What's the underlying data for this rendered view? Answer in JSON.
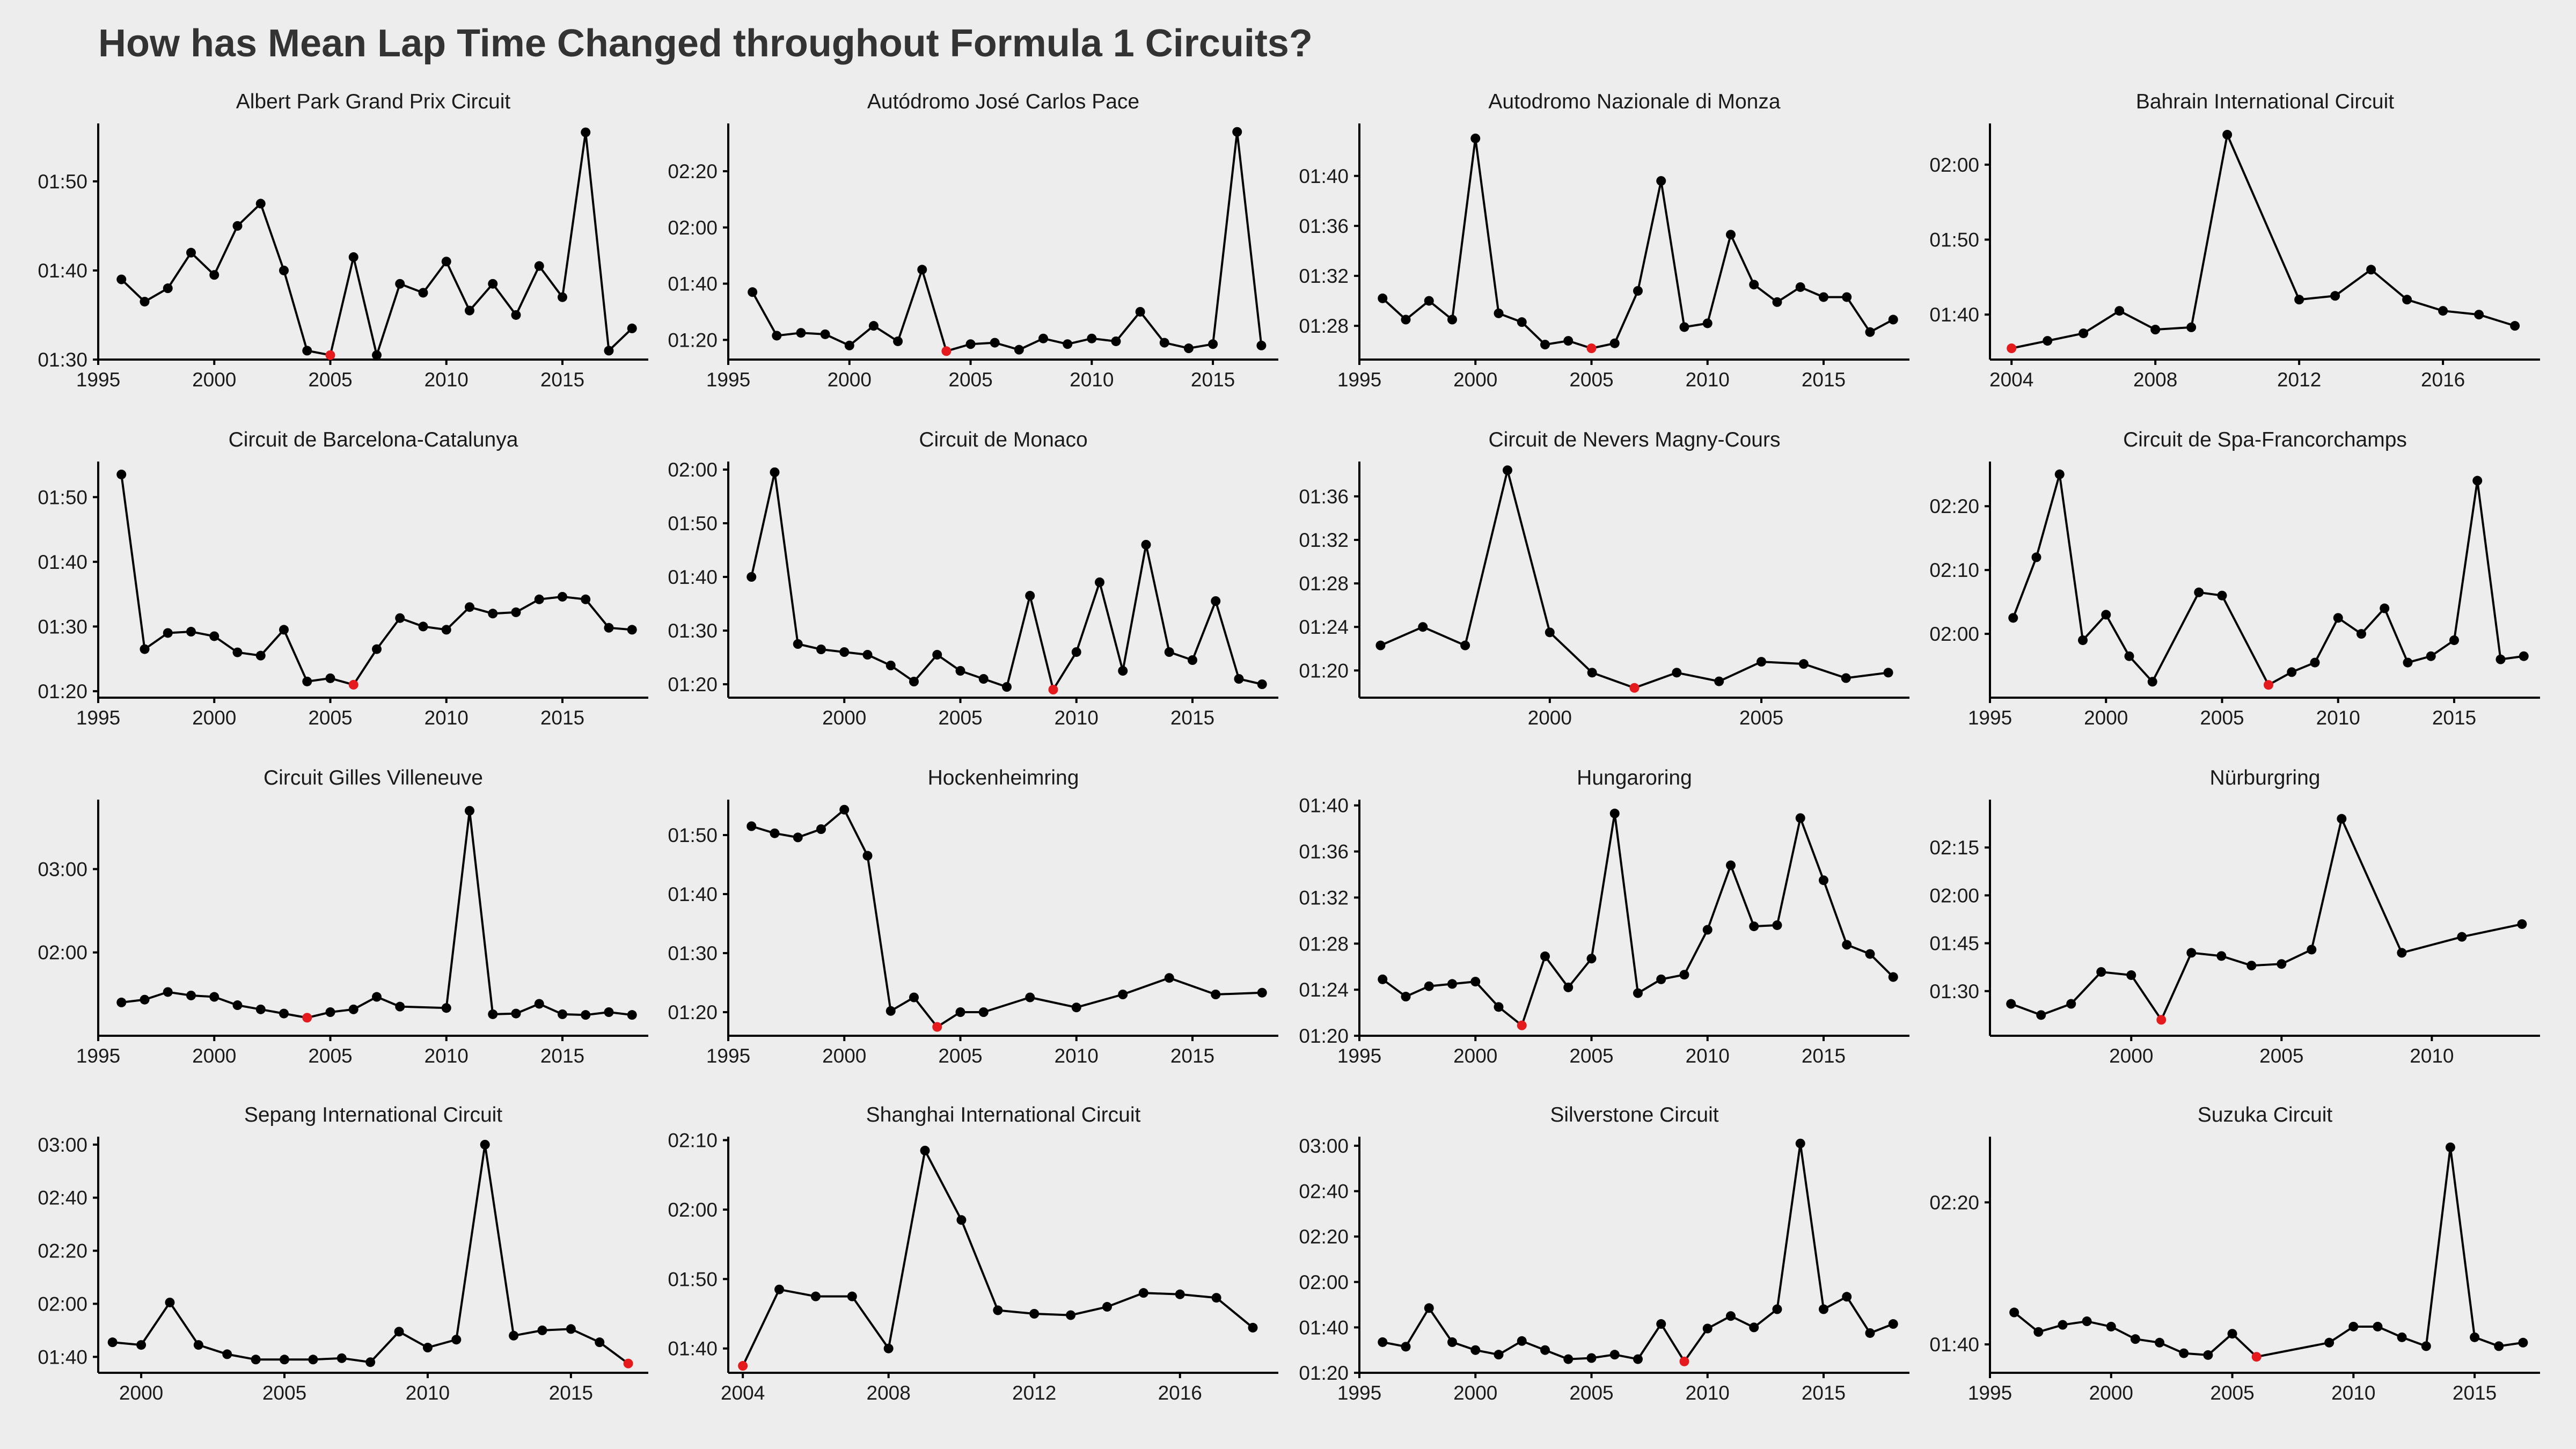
{
  "title": "How has Mean Lap Time Changed throughout Formula 1 Circuits?",
  "colors": {
    "background": "#ededed",
    "line": "#000000",
    "point": "#000000",
    "min_point": "#e41a1c"
  },
  "chart_data": [
    {
      "type": "line",
      "title": "Albert Park Grand Prix Circuit",
      "x": [
        1996,
        1997,
        1998,
        1999,
        2000,
        2001,
        2002,
        2003,
        2004,
        2005,
        2006,
        2007,
        2008,
        2009,
        2010,
        2011,
        2012,
        2013,
        2014,
        2015,
        2016,
        2017,
        2018
      ],
      "y": [
        99,
        96.5,
        98,
        102,
        99.5,
        105,
        107.5,
        100,
        91,
        90.5,
        101.5,
        90.5,
        98.5,
        97.5,
        101,
        95.5,
        98.5,
        95,
        100.5,
        97,
        115.5,
        91,
        93.5
      ],
      "highlight_x": 2005,
      "xlim": [
        1995,
        2018.7
      ],
      "ylim": [
        90,
        116.5
      ],
      "xticks": [
        1995,
        2000,
        2005,
        2010,
        2015
      ],
      "xtick_labels": [
        "1995",
        "2000",
        "2005",
        "2010",
        "2015"
      ],
      "yticks": [
        90,
        100,
        110
      ],
      "ytick_labels": [
        "01:30",
        "01:40",
        "01:50"
      ]
    },
    {
      "type": "line",
      "title": "Autódromo José Carlos Pace",
      "x": [
        1996,
        1997,
        1998,
        1999,
        2000,
        2001,
        2002,
        2003,
        2004,
        2005,
        2006,
        2007,
        2008,
        2009,
        2010,
        2011,
        2012,
        2013,
        2014,
        2015,
        2016,
        2017
      ],
      "y": [
        97,
        81.5,
        82.5,
        82,
        78,
        85,
        79.5,
        105,
        76,
        78.5,
        79,
        76.5,
        80.5,
        78.5,
        80.5,
        79.5,
        90,
        79,
        77,
        78.5,
        154,
        78
      ],
      "highlight_x": 2004,
      "xlim": [
        1995,
        2017.7
      ],
      "ylim": [
        73,
        157
      ],
      "xticks": [
        1995,
        2000,
        2005,
        2010,
        2015
      ],
      "xtick_labels": [
        "1995",
        "2000",
        "2005",
        "2010",
        "2015"
      ],
      "yticks": [
        80,
        100,
        120,
        140
      ],
      "ytick_labels": [
        "01:20",
        "01:40",
        "02:00",
        "02:20"
      ]
    },
    {
      "type": "line",
      "title": "Autodromo Nazionale di Monza",
      "x": [
        1996,
        1997,
        1998,
        1999,
        2000,
        2001,
        2002,
        2003,
        2004,
        2005,
        2006,
        2007,
        2008,
        2009,
        2010,
        2011,
        2012,
        2013,
        2014,
        2015,
        2016,
        2017,
        2018
      ],
      "y": [
        90.2,
        88.5,
        90,
        88.5,
        103,
        89,
        88.3,
        86.5,
        86.8,
        86.2,
        86.6,
        90.8,
        99.6,
        87.9,
        88.2,
        95.3,
        91.3,
        89.9,
        91.1,
        90.3,
        90.3,
        87.5,
        88.5
      ],
      "highlight_x": 2005,
      "xlim": [
        1995,
        2018.7
      ],
      "ylim": [
        85.3,
        104.2
      ],
      "xticks": [
        1995,
        2000,
        2005,
        2010,
        2015
      ],
      "xtick_labels": [
        "1995",
        "2000",
        "2005",
        "2010",
        "2015"
      ],
      "yticks": [
        88,
        92,
        96,
        100
      ],
      "ytick_labels": [
        "01:28",
        "01:32",
        "01:36",
        "01:40"
      ]
    },
    {
      "type": "line",
      "title": "Bahrain International Circuit",
      "x": [
        2004,
        2005,
        2006,
        2007,
        2008,
        2009,
        2010,
        2012,
        2013,
        2014,
        2015,
        2016,
        2017,
        2018
      ],
      "y": [
        95.5,
        96.5,
        97.5,
        100.5,
        98,
        98.3,
        124,
        102,
        102.5,
        106,
        102,
        100.5,
        100,
        98.5
      ],
      "highlight_x": 2004,
      "xlim": [
        2003.4,
        2018.7
      ],
      "ylim": [
        94,
        125.5
      ],
      "xticks": [
        2004,
        2008,
        2012,
        2016
      ],
      "xtick_labels": [
        "2004",
        "2008",
        "2012",
        "2016"
      ],
      "yticks": [
        100,
        110,
        120
      ],
      "ytick_labels": [
        "01:40",
        "01:50",
        "02:00"
      ]
    },
    {
      "type": "line",
      "title": "Circuit de Barcelona-Catalunya",
      "x": [
        1996,
        1997,
        1998,
        1999,
        2000,
        2001,
        2002,
        2003,
        2004,
        2005,
        2006,
        2007,
        2008,
        2009,
        2010,
        2011,
        2012,
        2013,
        2014,
        2015,
        2016,
        2017,
        2018
      ],
      "y": [
        113.5,
        86.5,
        89,
        89.2,
        88.5,
        86,
        85.5,
        89.5,
        81.5,
        82,
        81,
        86.5,
        91.3,
        90,
        89.5,
        93,
        92,
        92.2,
        94.2,
        94.6,
        94.2,
        89.8,
        89.5
      ],
      "highlight_x": 2006,
      "xlim": [
        1995,
        2018.7
      ],
      "ylim": [
        79,
        115.5
      ],
      "xticks": [
        1995,
        2000,
        2005,
        2010,
        2015
      ],
      "xtick_labels": [
        "1995",
        "2000",
        "2005",
        "2010",
        "2015"
      ],
      "yticks": [
        80,
        90,
        100,
        110
      ],
      "ytick_labels": [
        "01:20",
        "01:30",
        "01:40",
        "01:50"
      ]
    },
    {
      "type": "line",
      "title": "Circuit de Monaco",
      "x": [
        1996,
        1997,
        1998,
        1999,
        2000,
        2001,
        2002,
        2003,
        2004,
        2005,
        2006,
        2007,
        2008,
        2009,
        2010,
        2011,
        2012,
        2013,
        2014,
        2015,
        2016,
        2017,
        2018
      ],
      "y": [
        100,
        119.5,
        87.5,
        86.5,
        86,
        85.5,
        83.5,
        80.5,
        85.5,
        82.5,
        81,
        79.5,
        96.5,
        79,
        86,
        99,
        82.5,
        106,
        86,
        84.5,
        95.5,
        81,
        80
      ],
      "highlight_x": 2009,
      "xlim": [
        1995,
        2018.7
      ],
      "ylim": [
        77.5,
        121.5
      ],
      "xticks": [
        2000,
        2005,
        2010,
        2015
      ],
      "xtick_labels": [
        "2000",
        "2005",
        "2010",
        "2015"
      ],
      "yticks": [
        80,
        90,
        100,
        110,
        120
      ],
      "ytick_labels": [
        "01:20",
        "01:30",
        "01:40",
        "01:50",
        "02:00"
      ]
    },
    {
      "type": "line",
      "title": "Circuit de Nevers Magny-Cours",
      "x": [
        1996,
        1997,
        1998,
        1999,
        2000,
        2001,
        2002,
        2003,
        2004,
        2005,
        2006,
        2007,
        2008
      ],
      "y": [
        82.3,
        84,
        82.3,
        98.4,
        83.5,
        79.8,
        78.4,
        79.8,
        79,
        80.8,
        80.6,
        79.3,
        79.8
      ],
      "highlight_x": 2002,
      "xlim": [
        1995.5,
        2008.5
      ],
      "ylim": [
        77.5,
        99.2
      ],
      "xticks": [
        2000,
        2005
      ],
      "xtick_labels": [
        "2000",
        "2005"
      ],
      "yticks": [
        80,
        84,
        88,
        92,
        96
      ],
      "ytick_labels": [
        "01:20",
        "01:24",
        "01:28",
        "01:32",
        "01:36"
      ]
    },
    {
      "type": "line",
      "title": "Circuit de Spa-Francorchamps",
      "x": [
        1996,
        1997,
        1998,
        1999,
        2000,
        2001,
        2002,
        2004,
        2005,
        2007,
        2008,
        2009,
        2010,
        2011,
        2012,
        2013,
        2014,
        2015,
        2016,
        2017,
        2018
      ],
      "y": [
        122.5,
        132,
        145,
        119,
        123,
        116.5,
        112.5,
        126.5,
        126,
        112,
        114,
        115.5,
        122.5,
        120,
        124,
        115.5,
        116.5,
        119,
        144,
        116,
        116.5
      ],
      "highlight_x": 2007,
      "xlim": [
        1995,
        2018.7
      ],
      "ylim": [
        110,
        147
      ],
      "xticks": [
        1995,
        2000,
        2005,
        2010,
        2015
      ],
      "xtick_labels": [
        "1995",
        "2000",
        "2005",
        "2010",
        "2015"
      ],
      "yticks": [
        120,
        130,
        140
      ],
      "ytick_labels": [
        "02:00",
        "02:10",
        "02:20"
      ]
    },
    {
      "type": "line",
      "title": "Circuit Gilles Villeneuve",
      "x": [
        1996,
        1997,
        1998,
        1999,
        2000,
        2001,
        2002,
        2003,
        2004,
        2005,
        2006,
        2007,
        2008,
        2010,
        2011,
        2012,
        2013,
        2014,
        2015,
        2016,
        2017,
        2018
      ],
      "y": [
        84,
        86,
        91.5,
        89,
        88,
        82,
        79,
        76,
        73,
        77,
        79,
        88,
        81,
        80,
        222,
        75.5,
        76,
        83,
        75.5,
        75,
        77,
        75
      ],
      "highlight_x": 2004,
      "xlim": [
        1995,
        2018.7
      ],
      "ylim": [
        60,
        230
      ],
      "xticks": [
        1995,
        2000,
        2005,
        2010,
        2015
      ],
      "xtick_labels": [
        "1995",
        "2000",
        "2005",
        "2010",
        "2015"
      ],
      "yticks": [
        120,
        180
      ],
      "ytick_labels": [
        "02:00",
        "03:00"
      ]
    },
    {
      "type": "line",
      "title": "Hockenheimring",
      "x": [
        1996,
        1997,
        1998,
        1999,
        2000,
        2001,
        2002,
        2003,
        2004,
        2005,
        2006,
        2008,
        2010,
        2012,
        2014,
        2016,
        2018
      ],
      "y": [
        111.5,
        110.3,
        109.6,
        111,
        114.3,
        106.5,
        80.2,
        82.5,
        77.5,
        80,
        80,
        82.5,
        80.8,
        83,
        85.8,
        83,
        83.3
      ],
      "highlight_x": 2004,
      "xlim": [
        1995,
        2018.7
      ],
      "ylim": [
        76,
        116
      ],
      "xticks": [
        1995,
        2000,
        2005,
        2010,
        2015
      ],
      "xtick_labels": [
        "1995",
        "2000",
        "2005",
        "2010",
        "2015"
      ],
      "yticks": [
        80,
        90,
        100,
        110
      ],
      "ytick_labels": [
        "01:20",
        "01:30",
        "01:40",
        "01:50"
      ]
    },
    {
      "type": "line",
      "title": "Hungaroring",
      "x": [
        1996,
        1997,
        1998,
        1999,
        2000,
        2001,
        2002,
        2003,
        2004,
        2005,
        2006,
        2007,
        2008,
        2009,
        2010,
        2011,
        2012,
        2013,
        2014,
        2015,
        2016,
        2017,
        2018
      ],
      "y": [
        84.9,
        83.4,
        84.3,
        84.5,
        84.7,
        82.5,
        80.9,
        86.9,
        84.2,
        86.7,
        99.3,
        83.7,
        84.9,
        85.3,
        89.2,
        94.8,
        89.5,
        89.6,
        98.9,
        93.5,
        87.9,
        87.1,
        85.1
      ],
      "highlight_x": 2002,
      "xlim": [
        1995,
        2018.7
      ],
      "ylim": [
        80,
        100.5
      ],
      "xticks": [
        1995,
        2000,
        2005,
        2010,
        2015
      ],
      "xtick_labels": [
        "1995",
        "2000",
        "2005",
        "2010",
        "2015"
      ],
      "yticks": [
        80,
        84,
        88,
        92,
        96,
        100
      ],
      "ytick_labels": [
        "01:20",
        "01:24",
        "01:28",
        "01:32",
        "01:36",
        "01:40"
      ]
    },
    {
      "type": "line",
      "title": "Nürburgring",
      "x": [
        1996,
        1997,
        1998,
        1999,
        2000,
        2001,
        2002,
        2003,
        2004,
        2005,
        2006,
        2007,
        2009,
        2011,
        2013
      ],
      "y": [
        86,
        82.5,
        86,
        96,
        95,
        81,
        102,
        101,
        98,
        98.5,
        103,
        144,
        102,
        107,
        111
      ],
      "highlight_x": 2001,
      "xlim": [
        1995.3,
        2013.6
      ],
      "ylim": [
        76,
        150
      ],
      "xticks": [
        2000,
        2005,
        2010
      ],
      "xtick_labels": [
        "2000",
        "2005",
        "2010"
      ],
      "yticks": [
        90,
        105,
        120,
        135
      ],
      "ytick_labels": [
        "01:30",
        "01:45",
        "02:00",
        "02:15"
      ]
    },
    {
      "type": "line",
      "title": "Sepang International Circuit",
      "x": [
        1999,
        2000,
        2001,
        2002,
        2003,
        2004,
        2005,
        2006,
        2007,
        2008,
        2009,
        2010,
        2011,
        2012,
        2013,
        2014,
        2015,
        2016,
        2017
      ],
      "y": [
        105.5,
        104.5,
        120.5,
        104.5,
        101,
        99,
        99,
        99,
        99.5,
        98,
        109.5,
        103.5,
        106.5,
        180,
        108,
        110,
        110.5,
        105.5,
        97.5
      ],
      "highlight_x": 2017,
      "xlim": [
        1998.5,
        2017.7
      ],
      "ylim": [
        94,
        183
      ],
      "xticks": [
        2000,
        2005,
        2010,
        2015
      ],
      "xtick_labels": [
        "2000",
        "2005",
        "2010",
        "2015"
      ],
      "yticks": [
        100,
        120,
        140,
        160,
        180
      ],
      "ytick_labels": [
        "01:40",
        "02:00",
        "02:20",
        "02:40",
        "03:00"
      ]
    },
    {
      "type": "line",
      "title": "Shanghai International Circuit",
      "x": [
        2004,
        2005,
        2006,
        2007,
        2008,
        2009,
        2010,
        2011,
        2012,
        2013,
        2014,
        2015,
        2016,
        2017,
        2018
      ],
      "y": [
        97.5,
        108.5,
        107.5,
        107.5,
        100,
        128.5,
        118.5,
        105.5,
        105,
        104.8,
        106,
        108,
        107.8,
        107.3,
        103
      ],
      "highlight_x": 2004,
      "xlim": [
        2003.6,
        2018.7
      ],
      "ylim": [
        96.5,
        130.5
      ],
      "xticks": [
        2004,
        2008,
        2012,
        2016
      ],
      "xtick_labels": [
        "2004",
        "2008",
        "2012",
        "2016"
      ],
      "yticks": [
        100,
        110,
        120,
        130
      ],
      "ytick_labels": [
        "01:40",
        "01:50",
        "02:00",
        "02:10"
      ]
    },
    {
      "type": "line",
      "title": "Silverstone Circuit",
      "x": [
        1996,
        1997,
        1998,
        1999,
        2000,
        2001,
        2002,
        2003,
        2004,
        2005,
        2006,
        2007,
        2008,
        2009,
        2010,
        2011,
        2012,
        2013,
        2014,
        2015,
        2016,
        2017,
        2018
      ],
      "y": [
        93.5,
        91.5,
        108.5,
        93.5,
        90,
        88,
        94,
        90,
        86,
        86.5,
        88,
        86,
        101.5,
        85,
        99.5,
        105,
        100,
        108,
        181,
        108,
        113.5,
        97.5,
        101.5
      ],
      "highlight_x": 2009,
      "xlim": [
        1995,
        2018.7
      ],
      "ylim": [
        80,
        184
      ],
      "xticks": [
        1995,
        2000,
        2005,
        2010,
        2015
      ],
      "xtick_labels": [
        "1995",
        "2000",
        "2005",
        "2010",
        "2015"
      ],
      "yticks": [
        80,
        100,
        120,
        140,
        160,
        180
      ],
      "ytick_labels": [
        "01:20",
        "01:40",
        "02:00",
        "02:20",
        "02:40",
        "03:00"
      ]
    },
    {
      "type": "line",
      "title": "Suzuka Circuit",
      "x": [
        1996,
        1997,
        1998,
        1999,
        2000,
        2001,
        2002,
        2003,
        2004,
        2005,
        2006,
        2009,
        2010,
        2011,
        2012,
        2013,
        2014,
        2015,
        2016,
        2017
      ],
      "y": [
        109,
        103.5,
        105.5,
        106.5,
        105,
        101.5,
        100.5,
        97.5,
        97,
        103,
        96.5,
        100.5,
        105,
        105,
        102,
        99.5,
        155.5,
        102,
        99.5,
        100.5
      ],
      "highlight_x": 2006,
      "xlim": [
        1995,
        2017.7
      ],
      "ylim": [
        92,
        158.5
      ],
      "xticks": [
        1995,
        2000,
        2005,
        2010,
        2015
      ],
      "xtick_labels": [
        "1995",
        "2000",
        "2005",
        "2010",
        "2015"
      ],
      "yticks": [
        100,
        140
      ],
      "ytick_labels": [
        "01:40",
        "02:20"
      ]
    }
  ]
}
